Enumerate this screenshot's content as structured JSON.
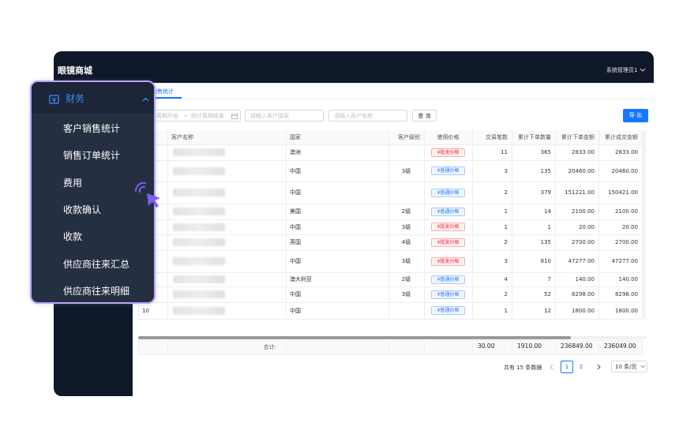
{
  "header": {
    "title": "眼镜商城",
    "user": "系统管理员1"
  },
  "tab": "销售统计",
  "filters": {
    "date_start": "统计周期开始",
    "date_sep": "-",
    "date_end": "统计周期结束",
    "country": "请输入客户国家",
    "customer": "请输入客户名称",
    "search": "查 询",
    "export": "导 出"
  },
  "table": {
    "columns": [
      "客户名称",
      "国家",
      "客户级别",
      "使用价格",
      "交易笔数",
      "累计下单数量",
      "累计下单金额",
      "累计成交金额"
    ],
    "rows": [
      [
        null,
        null,
        "澳洲",
        null,
        "¥批发价格",
        11,
        365,
        "2833.00",
        "2833.00"
      ],
      [
        null,
        null,
        "中国",
        "3级",
        "¥普通价格",
        3,
        135,
        "20460.00",
        "20460.00"
      ],
      [
        null,
        null,
        "中国",
        null,
        "¥普通价格",
        2,
        379,
        "151221.00",
        "150421.00"
      ],
      [
        null,
        null,
        "美国",
        "2级",
        "¥普通价格",
        1,
        14,
        "2100.00",
        "2100.00"
      ],
      [
        null,
        null,
        "中国",
        "3级",
        "¥批发价格",
        1,
        1,
        "20.00",
        "20.00"
      ],
      [
        null,
        null,
        "英国",
        "4级",
        "¥批发价格",
        2,
        135,
        "2700.00",
        "2700.00"
      ],
      [
        null,
        null,
        "中国",
        "3级",
        "¥批发价格",
        3,
        810,
        "47277.00",
        "47277.00"
      ],
      [
        null,
        null,
        "澳大利亚",
        "2级",
        "¥普通价格",
        4,
        7,
        "140.00",
        "140.00"
      ],
      [
        null,
        null,
        "中国",
        "3级",
        "¥普通价格",
        2,
        52,
        "8298.00",
        "8298.00"
      ],
      [
        10,
        null,
        "中国",
        null,
        "¥普通价格",
        1,
        12,
        "1800.00",
        "1800.00"
      ]
    ],
    "tag_colors": [
      "#f5222d",
      "#1677ff",
      "#1677ff",
      "#1677ff",
      "#f5222d",
      "#f5222d",
      "#f5222d",
      "#1677ff",
      "#1677ff",
      "#1677ff"
    ]
  },
  "summary": {
    "label": "合计:",
    "values": [
      "30.00",
      "1910.00",
      "236849.00",
      "236049.00"
    ]
  },
  "pagination": {
    "total": "共有 15 条数据",
    "pages": [
      1,
      2
    ],
    "page_size": "10 条/页"
  },
  "menu": {
    "title": "财务",
    "items": [
      "客户销售统计",
      "销售订单统计",
      "费用",
      "收款确认",
      "收款",
      "供应商往来汇总",
      "供应商往来明细"
    ]
  }
}
